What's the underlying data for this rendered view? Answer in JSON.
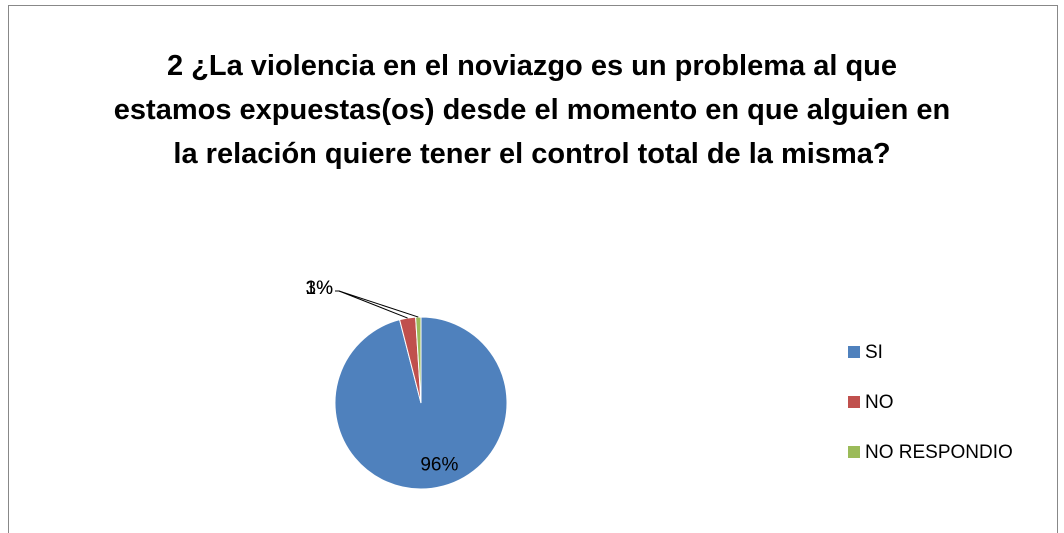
{
  "chart_data": {
    "type": "pie",
    "title": "2 ¿La violencia en el noviazgo es un problema al que estamos expuestas(os) desde el momento en que alguien en la relación quiere tener el control total de la misma?",
    "categories": [
      "SI",
      "NO",
      "NO RESPONDIO"
    ],
    "values": [
      96,
      3,
      1
    ],
    "value_labels": [
      "96%",
      "3%",
      "1%"
    ],
    "colors": [
      "#4f81bd",
      "#c0504d",
      "#9bbb59"
    ],
    "legend": "right"
  }
}
